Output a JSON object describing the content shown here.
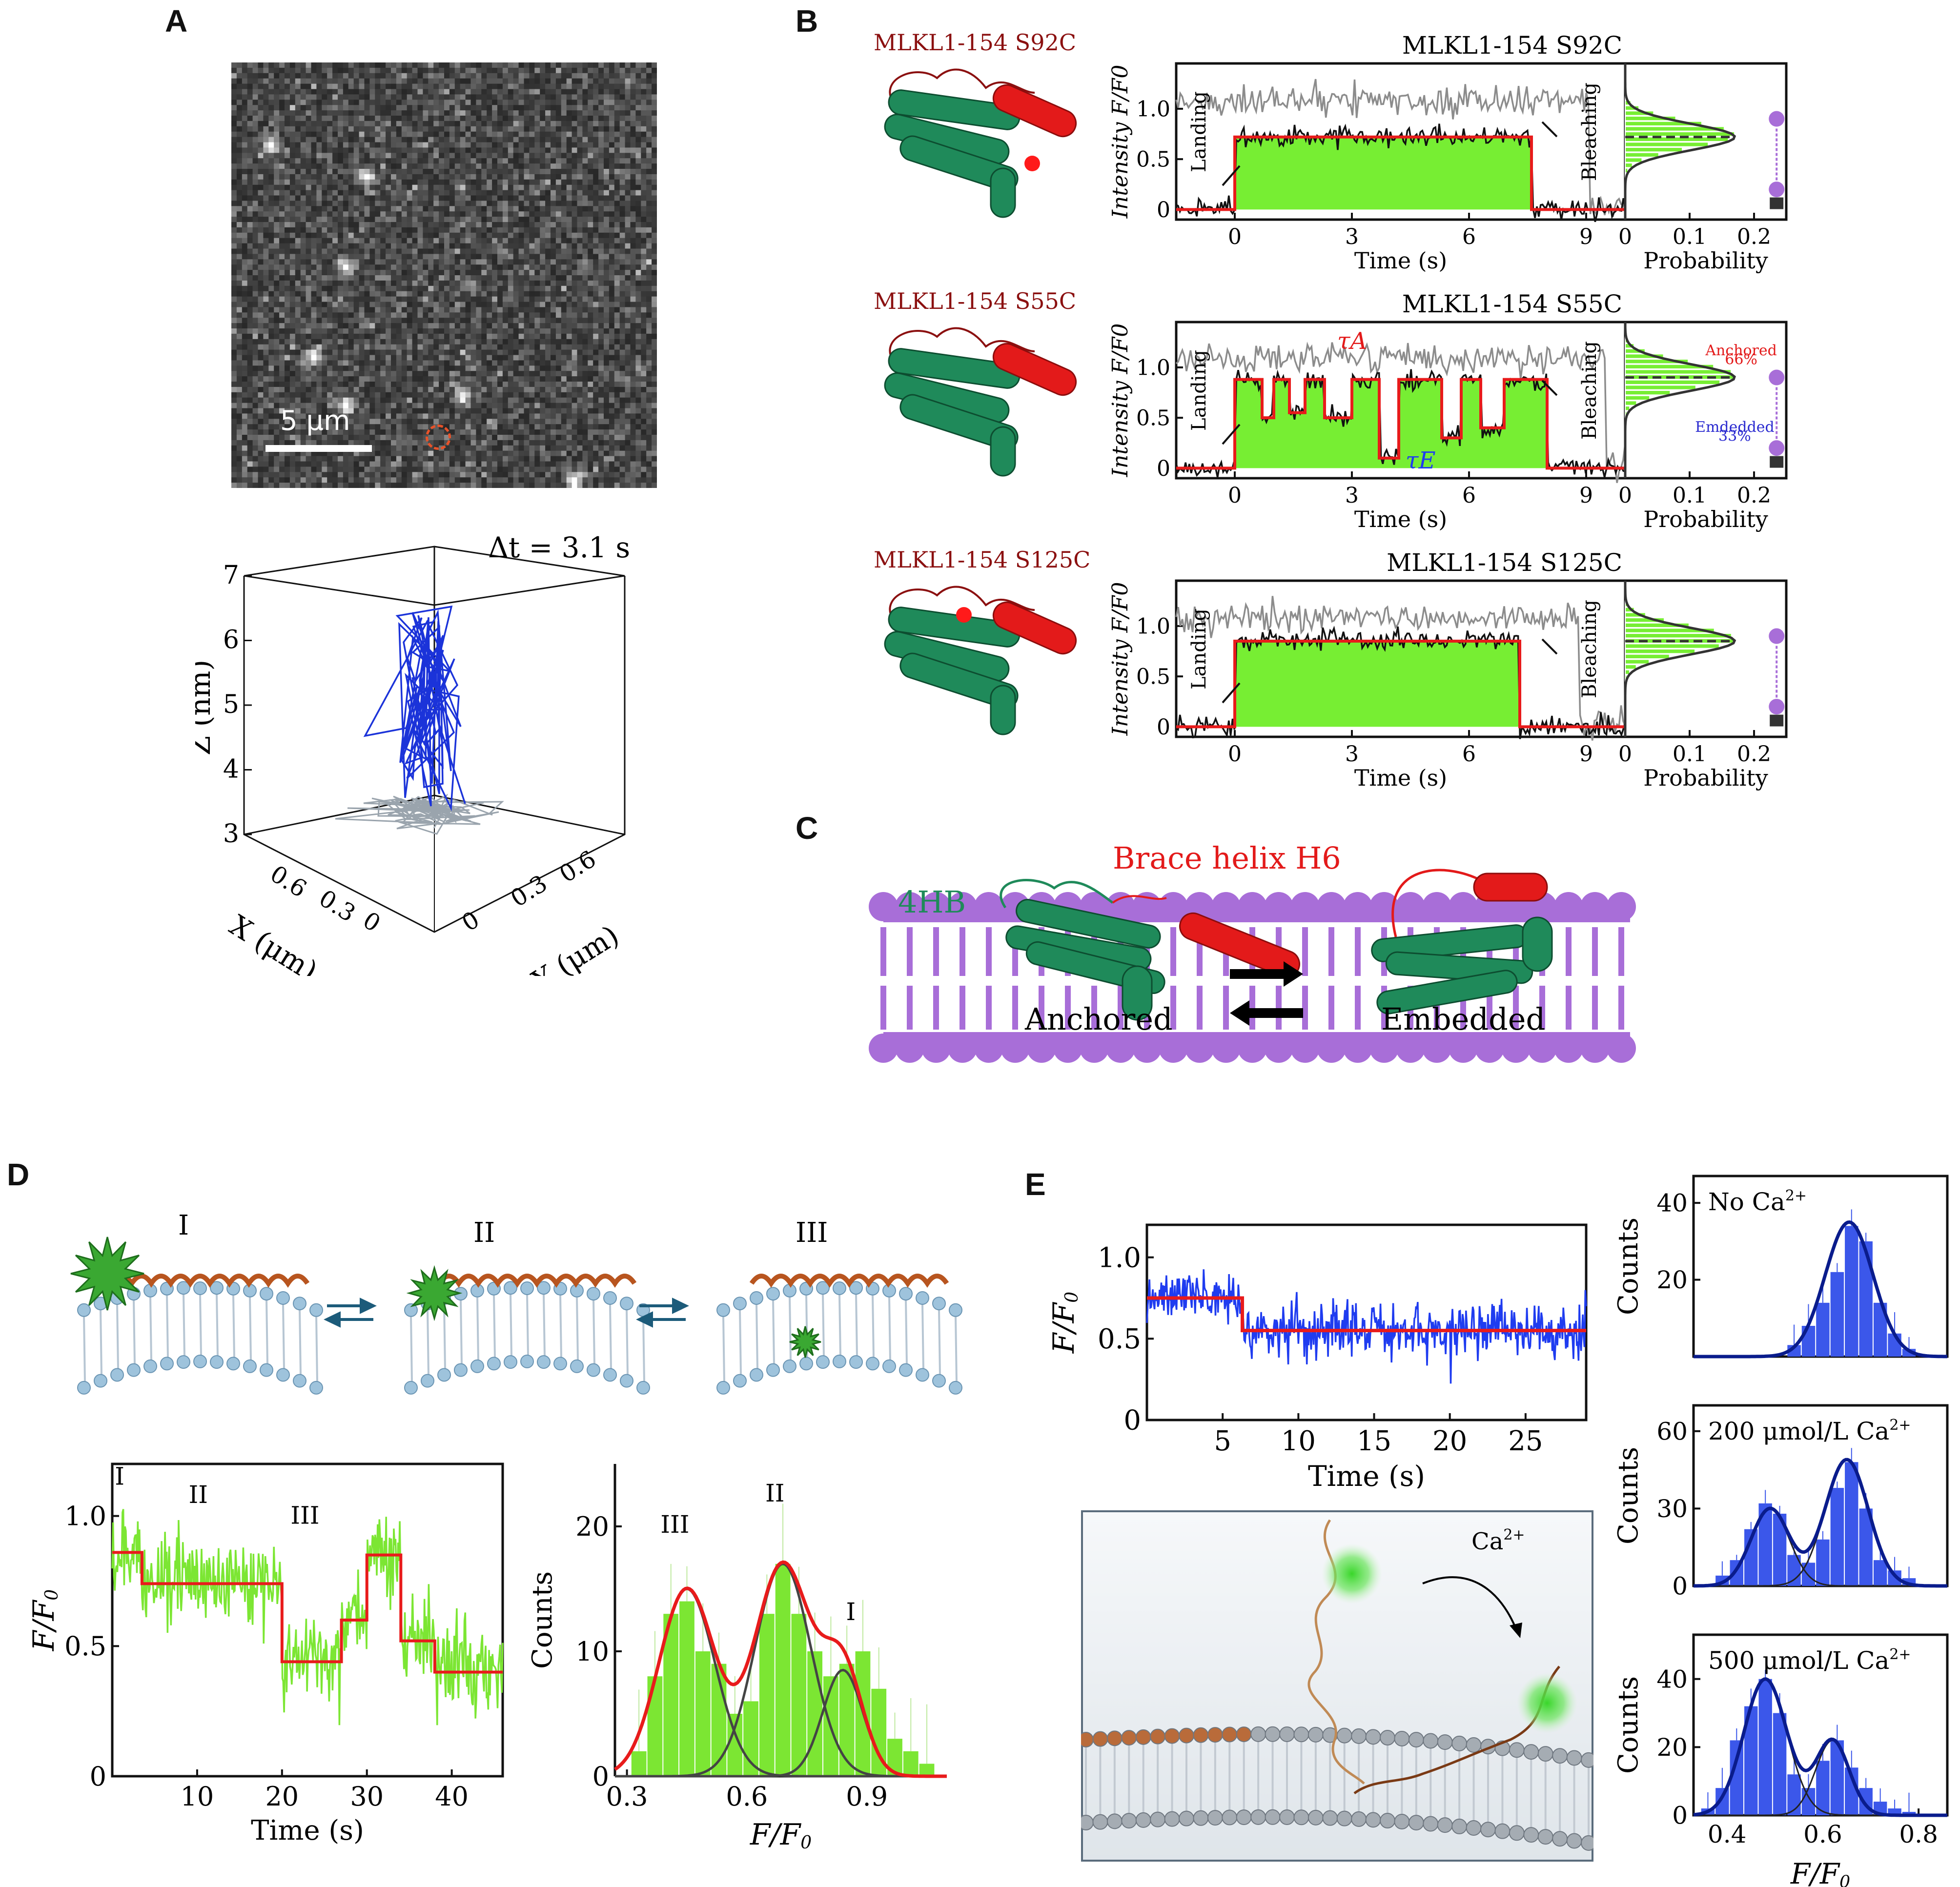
{
  "panels": {
    "A": {
      "letter": "A",
      "scale_bar": "5 μm",
      "delta_t": "Δt = 3.1 s",
      "traj_axes": {
        "z_label": "Z (nm)",
        "x_label": "X (μm)",
        "y_label": "Y (μm)",
        "z_ticks": [
          "3",
          "4",
          "5",
          "6",
          "7"
        ],
        "x_ticks": [
          "0.6",
          "0.3",
          "0"
        ],
        "y_ticks": [
          "0",
          "0.3",
          "0.6"
        ]
      }
    },
    "B": {
      "letter": "B",
      "rows": [
        {
          "construct": "MLKL1-154 S92C",
          "trace_title": "MLKL1-154 S92C",
          "landing": "Landing",
          "bleaching": "Bleaching",
          "x_ticks": [
            "0",
            "3",
            "6",
            "9"
          ],
          "y_ticks": [
            "0",
            "0.5",
            "1.0"
          ],
          "xlabel": "Time (s)",
          "ylabel": "Intensity F/F0",
          "hist_ticks": [
            "0",
            "0.1",
            "0.2"
          ],
          "hist_xlabel": "Probability"
        },
        {
          "construct": "MLKL1-154 S55C",
          "trace_title": "MLKL1-154 S55C",
          "landing": "Landing",
          "bleaching": "Bleaching",
          "x_ticks": [
            "0",
            "3",
            "6",
            "9"
          ],
          "y_ticks": [
            "0",
            "0.5",
            "1.0"
          ],
          "xlabel": "Time (s)",
          "ylabel": "Intensity F/F0",
          "hist_ticks": [
            "0",
            "0.1",
            "0.2"
          ],
          "hist_xlabel": "Probability",
          "tau_a": "τA",
          "tau_e": "τE",
          "anchored": "Anchored",
          "anchored_pct": "66%",
          "embedded": "Emdedded",
          "embedded_pct": "33%"
        },
        {
          "construct": "MLKL1-154 S125C",
          "trace_title": "MLKL1-154 S125C",
          "landing": "Landing",
          "bleaching": "Bleaching",
          "x_ticks": [
            "0",
            "3",
            "6",
            "9"
          ],
          "y_ticks": [
            "0",
            "0.5",
            "1.0"
          ],
          "xlabel": "Time (s)",
          "ylabel": "Intensity F/F0",
          "hist_ticks": [
            "0",
            "0.1",
            "0.2"
          ],
          "hist_xlabel": "Probability"
        }
      ]
    },
    "C": {
      "letter": "C",
      "label_4hb": "4HB",
      "label_brace": "Brace helix H6",
      "anchored": "Anchored",
      "embedded": "Embedded"
    },
    "D": {
      "letter": "D",
      "states": [
        "I",
        "II",
        "III"
      ],
      "trace": {
        "xlabel": "Time (s)",
        "ylabel": "F/F0",
        "x_ticks": [
          "10",
          "20",
          "30",
          "40"
        ],
        "y_ticks": [
          "0",
          "0.5",
          "1.0"
        ],
        "state_labels": [
          "I",
          "II",
          "III"
        ]
      },
      "hist": {
        "xlabel": "F/F0",
        "ylabel": "Counts",
        "x_ticks": [
          "0.3",
          "0.6",
          "0.9"
        ],
        "y_ticks": [
          "0",
          "10",
          "20"
        ],
        "peak_labels": [
          "III",
          "II",
          "I"
        ]
      }
    },
    "E": {
      "letter": "E",
      "trace": {
        "xlabel": "Time (s)",
        "ylabel": "F/F0",
        "x_ticks": [
          "5",
          "10",
          "15",
          "20",
          "25"
        ],
        "y_ticks": [
          "0",
          "0.5",
          "1.0"
        ]
      },
      "ca_label": "Ca2+",
      "hists": [
        {
          "title": "No Ca2+",
          "y_ticks": [
            "20",
            "40"
          ],
          "ylabel": "Counts"
        },
        {
          "title": "200 μmol/L Ca2+",
          "y_ticks": [
            "0",
            "30",
            "60"
          ],
          "ylabel": "Counts"
        },
        {
          "title": "500 μmol/L Ca2+",
          "y_ticks": [
            "0",
            "20",
            "40"
          ],
          "ylabel": "Counts"
        }
      ],
      "hist_x_ticks": [
        "0.4",
        "0.6",
        "0.8"
      ],
      "hist_xlabel": "F/F0"
    }
  },
  "chart_data": [
    {
      "type": "line",
      "panel": "B-S92C",
      "xlabel": "Time (s)",
      "ylabel": "Intensity F/F0",
      "xlim": [
        -1.5,
        10
      ],
      "ylim": [
        -0.1,
        1.45
      ],
      "step_fit": {
        "x": [
          -1.5,
          0,
          0,
          7.6,
          7.6,
          10
        ],
        "y": [
          0,
          0,
          0.72,
          0.72,
          0,
          0
        ]
      }
    },
    {
      "type": "line",
      "panel": "B-S55C",
      "xlabel": "Time (s)",
      "ylabel": "Intensity F/F0",
      "xlim": [
        -1.5,
        10
      ],
      "ylim": [
        -0.1,
        1.45
      ],
      "step_fit": {
        "x": [
          -1.5,
          0,
          0,
          0.7,
          0.7,
          1.0,
          1.0,
          1.4,
          1.4,
          1.8,
          1.8,
          2.3,
          2.3,
          3.0,
          3.0,
          3.7,
          3.7,
          4.2,
          4.2,
          5.3,
          5.3,
          5.8,
          5.8,
          6.3,
          6.3,
          6.9,
          6.9,
          8.0,
          8.0,
          10
        ],
        "y": [
          0,
          0,
          0.88,
          0.88,
          0.5,
          0.5,
          0.88,
          0.88,
          0.55,
          0.55,
          0.88,
          0.88,
          0.5,
          0.5,
          0.88,
          0.88,
          0.1,
          0.1,
          0.88,
          0.88,
          0.3,
          0.3,
          0.88,
          0.88,
          0.4,
          0.4,
          0.88,
          0.88,
          0,
          0
        ]
      }
    },
    {
      "type": "line",
      "panel": "B-S125C",
      "xlabel": "Time (s)",
      "ylabel": "Intensity F/F0",
      "xlim": [
        -1.5,
        10
      ],
      "ylim": [
        -0.1,
        1.45
      ],
      "step_fit": {
        "x": [
          -1.5,
          0,
          0,
          7.3,
          7.3,
          10
        ],
        "y": [
          0,
          0,
          0.85,
          0.85,
          0,
          0
        ]
      }
    },
    {
      "type": "line",
      "panel": "D-trace",
      "xlabel": "Time (s)",
      "ylabel": "F/F0",
      "xlim": [
        0,
        46
      ],
      "ylim": [
        0,
        1.2
      ],
      "step_fit": {
        "x": [
          0,
          3.5,
          3.5,
          20,
          20,
          27,
          27,
          30,
          30,
          34,
          34,
          38,
          38,
          46
        ],
        "y": [
          0.86,
          0.86,
          0.74,
          0.74,
          0.44,
          0.44,
          0.6,
          0.6,
          0.85,
          0.85,
          0.52,
          0.52,
          0.4,
          0.4
        ]
      }
    },
    {
      "type": "bar",
      "panel": "D-hist",
      "xlabel": "F/F0",
      "ylabel": "Counts",
      "xlim": [
        0.27,
        1.1
      ],
      "ylim": [
        0,
        25
      ],
      "bin_centers": [
        0.33,
        0.37,
        0.41,
        0.45,
        0.49,
        0.53,
        0.57,
        0.61,
        0.65,
        0.69,
        0.73,
        0.77,
        0.81,
        0.85,
        0.89,
        0.93,
        0.97,
        1.01,
        1.05
      ],
      "values": [
        2,
        8,
        13,
        14,
        10,
        9,
        5,
        6,
        13,
        17,
        13,
        10,
        8,
        9,
        10,
        7,
        3,
        2,
        1
      ],
      "gauss_fits": [
        {
          "mu": 0.45,
          "sigma": 0.07,
          "amp": 15
        },
        {
          "mu": 0.69,
          "sigma": 0.07,
          "amp": 17
        },
        {
          "mu": 0.84,
          "sigma": 0.05,
          "amp": 8.5
        }
      ]
    },
    {
      "type": "line",
      "panel": "E-trace",
      "xlabel": "Time (s)",
      "ylabel": "F/F0",
      "xlim": [
        0,
        29
      ],
      "ylim": [
        0,
        1.2
      ],
      "step_fit": {
        "x": [
          0,
          6.3,
          6.3,
          29
        ],
        "y": [
          0.75,
          0.75,
          0.55,
          0.55
        ]
      }
    },
    {
      "type": "bar",
      "panel": "E-hist-noCa",
      "title": "No Ca2+",
      "ylabel": "Counts",
      "xlim": [
        0.33,
        0.86
      ],
      "ylim": [
        0,
        47
      ],
      "bin_centers": [
        0.54,
        0.57,
        0.6,
        0.63,
        0.66,
        0.69,
        0.72,
        0.75,
        0.78
      ],
      "values": [
        3,
        8,
        14,
        22,
        34,
        30,
        14,
        6,
        2
      ],
      "gauss_fits": [
        {
          "mu": 0.655,
          "sigma": 0.05,
          "amp": 35
        }
      ]
    },
    {
      "type": "bar",
      "panel": "E-hist-200",
      "title": "200 μmol/L Ca2+",
      "ylabel": "Counts",
      "xlim": [
        0.33,
        0.86
      ],
      "ylim": [
        0,
        70
      ],
      "bin_centers": [
        0.39,
        0.42,
        0.45,
        0.48,
        0.51,
        0.54,
        0.57,
        0.6,
        0.63,
        0.66,
        0.69,
        0.72,
        0.75,
        0.78
      ],
      "values": [
        4,
        10,
        22,
        32,
        28,
        12,
        9,
        18,
        38,
        48,
        30,
        10,
        6,
        3
      ],
      "gauss_fits": [
        {
          "mu": 0.49,
          "sigma": 0.04,
          "amp": 30
        },
        {
          "mu": 0.65,
          "sigma": 0.045,
          "amp": 49
        }
      ]
    },
    {
      "type": "bar",
      "panel": "E-hist-500",
      "title": "500 μmol/L Ca2+",
      "ylabel": "Counts",
      "xlim": [
        0.33,
        0.86
      ],
      "ylim": [
        0,
        53
      ],
      "bin_centers": [
        0.36,
        0.39,
        0.42,
        0.45,
        0.48,
        0.51,
        0.54,
        0.57,
        0.6,
        0.63,
        0.66,
        0.69,
        0.72,
        0.75,
        0.78
      ],
      "values": [
        2,
        8,
        22,
        32,
        40,
        30,
        12,
        8,
        16,
        22,
        14,
        8,
        4,
        2,
        1
      ],
      "gauss_fits": [
        {
          "mu": 0.48,
          "sigma": 0.045,
          "amp": 40
        },
        {
          "mu": 0.62,
          "sigma": 0.035,
          "amp": 22
        }
      ]
    }
  ],
  "colors": {
    "green_helix": "#1f8a5a",
    "red_helix": "#e31a1a",
    "lipid_purple": "#a86ed8",
    "fill_green": "#77ee33",
    "trace_blue": "#1f3cf0",
    "hist_blue": "#3b57ea",
    "fit_navy": "#0a1c8c",
    "trace_lime": "#7ce633",
    "fit_red": "#e81b1b"
  }
}
